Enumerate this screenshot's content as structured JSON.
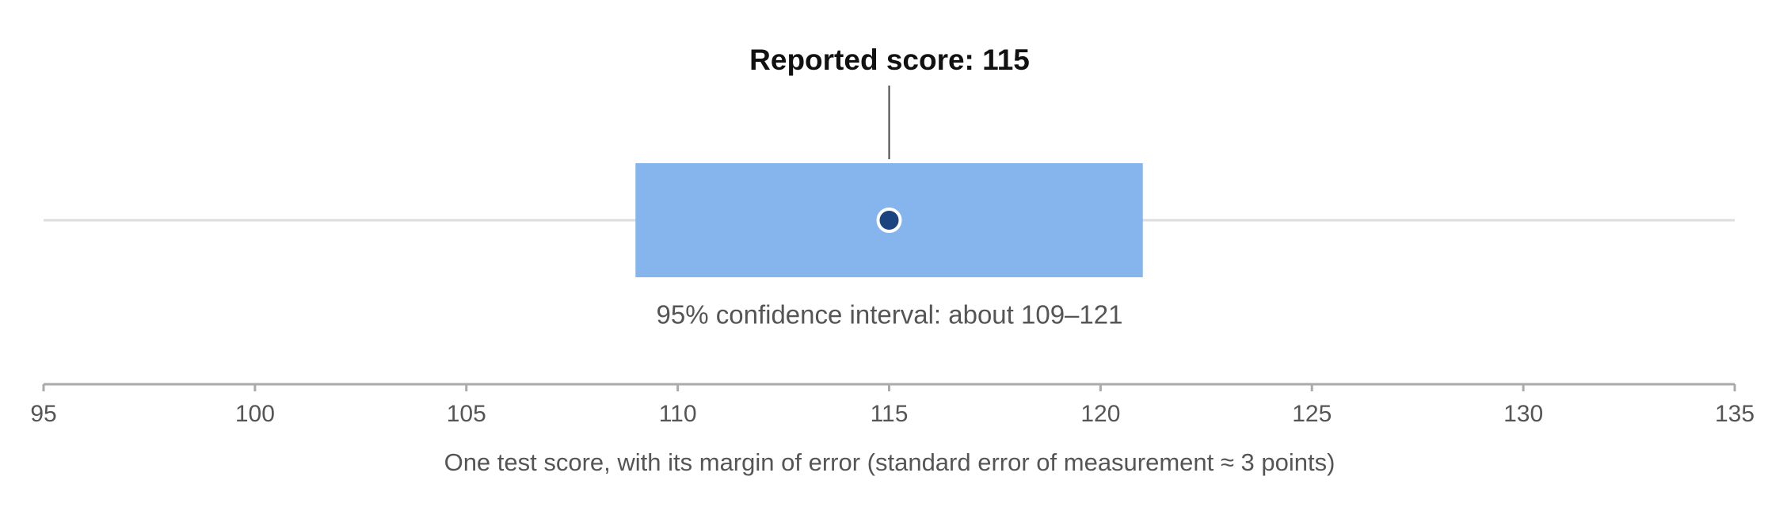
{
  "chart_data": {
    "type": "interval",
    "annotation": "Reported score: 115",
    "interval_label": "95% confidence interval: about 109–121",
    "xlabel": "One test score, with its margin of error (standard error of measurement ≈ 3 points)",
    "value": 115,
    "interval": [
      109,
      121
    ],
    "xlim": [
      95,
      135
    ],
    "xticks": [
      95,
      100,
      105,
      110,
      115,
      120,
      125,
      130,
      135
    ],
    "color": "#86b5ee",
    "point_color": "#1a4480"
  }
}
